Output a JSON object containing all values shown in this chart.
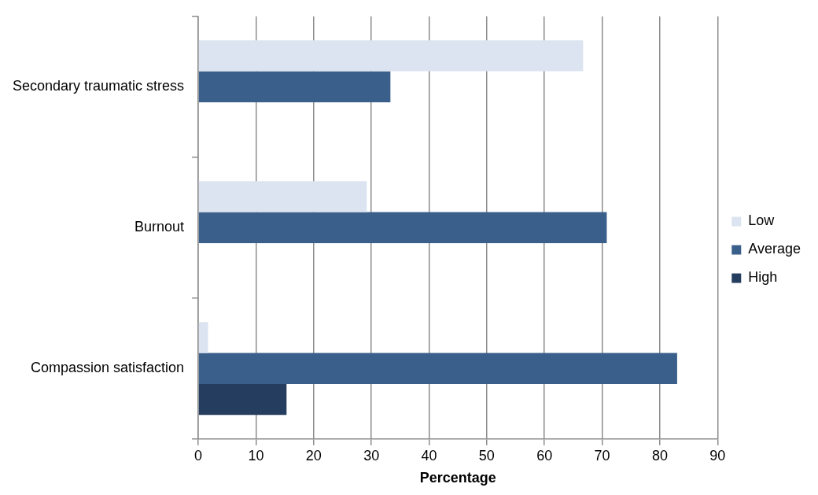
{
  "chart_data": {
    "type": "bar",
    "orientation": "horizontal",
    "xlabel": "Percentage",
    "categories": [
      "Secondary traumatic stress",
      "Burnout",
      "Compassion satisfaction"
    ],
    "series": [
      {
        "name": "Low",
        "color": "#dbe4f0",
        "values": [
          66.7,
          29.2,
          1.7
        ]
      },
      {
        "name": "Average",
        "color": "#3a5f8b",
        "values": [
          33.3,
          70.8,
          83.0
        ]
      },
      {
        "name": "High",
        "color": "#253d5f",
        "values": [
          null,
          null,
          15.3
        ]
      }
    ],
    "xlim": [
      0,
      90
    ],
    "xticks": [
      0,
      10,
      20,
      30,
      40,
      50,
      60,
      70,
      80,
      90
    ],
    "grid": "x",
    "legend": "right"
  }
}
